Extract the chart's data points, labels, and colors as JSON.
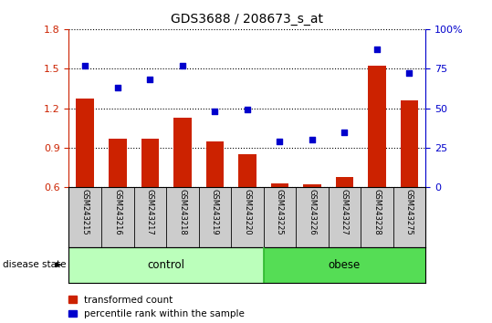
{
  "title": "GDS3688 / 208673_s_at",
  "samples": [
    "GSM243215",
    "GSM243216",
    "GSM243217",
    "GSM243218",
    "GSM243219",
    "GSM243220",
    "GSM243225",
    "GSM243226",
    "GSM243227",
    "GSM243228",
    "GSM243275"
  ],
  "bar_values": [
    1.27,
    0.97,
    0.97,
    1.13,
    0.95,
    0.85,
    0.63,
    0.62,
    0.68,
    1.52,
    1.26
  ],
  "scatter_values": [
    77,
    63,
    68,
    77,
    48,
    49,
    29,
    30,
    35,
    87,
    72
  ],
  "bar_color": "#cc2200",
  "scatter_color": "#0000cc",
  "ylim_left": [
    0.6,
    1.8
  ],
  "ylim_right": [
    0,
    100
  ],
  "yticks_left": [
    0.6,
    0.9,
    1.2,
    1.5,
    1.8
  ],
  "yticks_right": [
    0,
    25,
    50,
    75,
    100
  ],
  "ytick_labels_right": [
    "0",
    "25",
    "50",
    "75",
    "100%"
  ],
  "control_label": "control",
  "obese_label": "obese",
  "disease_state_label": "disease state",
  "legend_bar_label": "transformed count",
  "legend_scatter_label": "percentile rank within the sample",
  "control_color": "#bbffbb",
  "obese_color": "#55dd55",
  "grid_color": "black",
  "tick_area_color": "#cccccc",
  "n_control": 6,
  "n_obese": 5
}
